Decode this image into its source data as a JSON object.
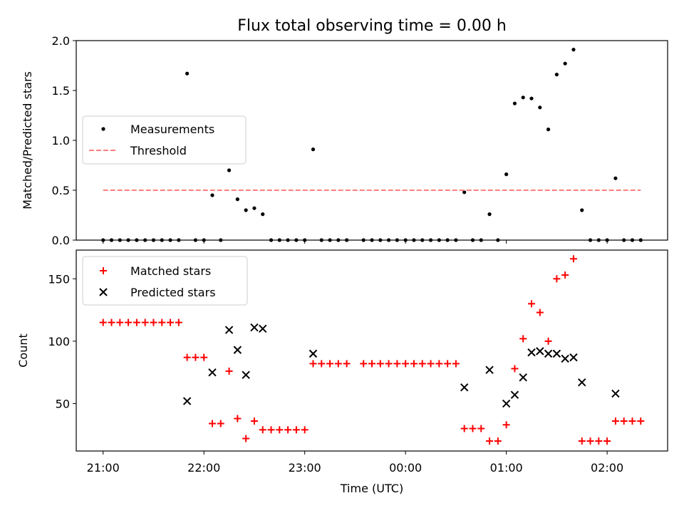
{
  "title": "Flux total observing time = 0.00 h",
  "chart_data": [
    {
      "type": "scatter",
      "name": "ratio-panel",
      "ylabel": "Matched/Predicted stars",
      "ylim": [
        0,
        2.0
      ],
      "yticks": [
        0.0,
        0.5,
        1.0,
        1.5,
        2.0
      ],
      "ytick_labels": [
        "0.0",
        "0.5",
        "1.0",
        "1.5",
        "2.0"
      ],
      "xlim": [
        "20:44",
        "02:36"
      ],
      "legend": {
        "placement": "center-left",
        "entries": [
          "Measurements",
          "Threshold"
        ]
      },
      "series": [
        {
          "name": "Measurements",
          "color": "#000000",
          "points": [
            [
              "21:00",
              0
            ],
            [
              "21:05",
              0
            ],
            [
              "21:10",
              0
            ],
            [
              "21:15",
              0
            ],
            [
              "21:20",
              0
            ],
            [
              "21:25",
              0
            ],
            [
              "21:30",
              0
            ],
            [
              "21:35",
              0
            ],
            [
              "21:40",
              0
            ],
            [
              "21:45",
              0
            ],
            [
              "21:50",
              1.67
            ],
            [
              "21:55",
              0
            ],
            [
              "22:00",
              0
            ],
            [
              "22:05",
              0.45
            ],
            [
              "22:10",
              0
            ],
            [
              "22:15",
              0.7
            ],
            [
              "22:20",
              0.41
            ],
            [
              "22:25",
              0.3
            ],
            [
              "22:30",
              0.32
            ],
            [
              "22:35",
              0.26
            ],
            [
              "22:40",
              0
            ],
            [
              "22:45",
              0
            ],
            [
              "22:50",
              0
            ],
            [
              "22:55",
              0
            ],
            [
              "23:00",
              0
            ],
            [
              "23:05",
              0.91
            ],
            [
              "23:10",
              0
            ],
            [
              "23:15",
              0
            ],
            [
              "23:20",
              0
            ],
            [
              "23:25",
              0
            ],
            [
              "23:35",
              0
            ],
            [
              "23:40",
              0
            ],
            [
              "23:45",
              0
            ],
            [
              "23:50",
              0
            ],
            [
              "23:55",
              0
            ],
            [
              "00:00",
              0
            ],
            [
              "00:05",
              0
            ],
            [
              "00:10",
              0
            ],
            [
              "00:15",
              0
            ],
            [
              "00:20",
              0
            ],
            [
              "00:25",
              0
            ],
            [
              "00:30",
              0
            ],
            [
              "00:35",
              0.48
            ],
            [
              "00:40",
              0
            ],
            [
              "00:45",
              0
            ],
            [
              "00:50",
              0.26
            ],
            [
              "00:55",
              0
            ],
            [
              "01:00",
              0.66
            ],
            [
              "01:05",
              1.37
            ],
            [
              "01:10",
              1.43
            ],
            [
              "01:15",
              1.42
            ],
            [
              "01:20",
              1.33
            ],
            [
              "01:25",
              1.11
            ],
            [
              "01:30",
              1.66
            ],
            [
              "01:35",
              1.77
            ],
            [
              "01:40",
              1.91
            ],
            [
              "01:45",
              0.3
            ],
            [
              "01:50",
              0
            ],
            [
              "01:55",
              0
            ],
            [
              "02:00",
              0
            ],
            [
              "02:05",
              0.62
            ],
            [
              "02:10",
              0
            ],
            [
              "02:15",
              0
            ],
            [
              "02:20",
              0
            ]
          ]
        },
        {
          "name": "Threshold",
          "color": "#ff7f7f",
          "style": "dashed",
          "points": [
            [
              "21:00",
              0.5
            ],
            [
              "02:20",
              0.5
            ]
          ]
        }
      ]
    },
    {
      "type": "scatter",
      "name": "count-panel",
      "ylabel": "Count",
      "xlabel": "Time (UTC)",
      "ylim": [
        12,
        173
      ],
      "yticks": [
        50,
        100,
        150
      ],
      "ytick_labels": [
        "50",
        "100",
        "150"
      ],
      "xlim": [
        "20:44",
        "02:36"
      ],
      "xticks": [
        "21:00",
        "22:00",
        "23:00",
        "00:00",
        "01:00",
        "02:00"
      ],
      "legend": {
        "placement": "top-left",
        "entries": [
          "Matched stars",
          "Predicted stars"
        ]
      },
      "series": [
        {
          "name": "Matched stars",
          "marker": "plus",
          "color": "#ff0000",
          "points": [
            [
              "21:00",
              115
            ],
            [
              "21:05",
              115
            ],
            [
              "21:10",
              115
            ],
            [
              "21:15",
              115
            ],
            [
              "21:20",
              115
            ],
            [
              "21:25",
              115
            ],
            [
              "21:30",
              115
            ],
            [
              "21:35",
              115
            ],
            [
              "21:40",
              115
            ],
            [
              "21:45",
              115
            ],
            [
              "21:50",
              87
            ],
            [
              "21:55",
              87
            ],
            [
              "22:00",
              87
            ],
            [
              "22:05",
              34
            ],
            [
              "22:10",
              34
            ],
            [
              "22:15",
              76
            ],
            [
              "22:20",
              38
            ],
            [
              "22:25",
              22
            ],
            [
              "22:30",
              36
            ],
            [
              "22:35",
              29
            ],
            [
              "22:40",
              29
            ],
            [
              "22:45",
              29
            ],
            [
              "22:50",
              29
            ],
            [
              "22:55",
              29
            ],
            [
              "23:00",
              29
            ],
            [
              "23:05",
              82
            ],
            [
              "23:10",
              82
            ],
            [
              "23:15",
              82
            ],
            [
              "23:20",
              82
            ],
            [
              "23:25",
              82
            ],
            [
              "23:35",
              82
            ],
            [
              "23:40",
              82
            ],
            [
              "23:45",
              82
            ],
            [
              "23:50",
              82
            ],
            [
              "23:55",
              82
            ],
            [
              "00:00",
              82
            ],
            [
              "00:05",
              82
            ],
            [
              "00:10",
              82
            ],
            [
              "00:15",
              82
            ],
            [
              "00:20",
              82
            ],
            [
              "00:25",
              82
            ],
            [
              "00:30",
              82
            ],
            [
              "00:35",
              30
            ],
            [
              "00:40",
              30
            ],
            [
              "00:45",
              30
            ],
            [
              "00:50",
              20
            ],
            [
              "00:55",
              20
            ],
            [
              "01:00",
              33
            ],
            [
              "01:05",
              78
            ],
            [
              "01:10",
              102
            ],
            [
              "01:15",
              130
            ],
            [
              "01:20",
              123
            ],
            [
              "01:25",
              100
            ],
            [
              "01:30",
              150
            ],
            [
              "01:35",
              153
            ],
            [
              "01:40",
              166
            ],
            [
              "01:45",
              20
            ],
            [
              "01:50",
              20
            ],
            [
              "01:55",
              20
            ],
            [
              "02:00",
              20
            ],
            [
              "02:05",
              36
            ],
            [
              "02:10",
              36
            ],
            [
              "02:15",
              36
            ],
            [
              "02:20",
              36
            ]
          ]
        },
        {
          "name": "Predicted stars",
          "marker": "x",
          "color": "#000000",
          "points": [
            [
              "21:50",
              52
            ],
            [
              "22:05",
              75
            ],
            [
              "22:15",
              109
            ],
            [
              "22:20",
              93
            ],
            [
              "22:25",
              73
            ],
            [
              "22:30",
              111
            ],
            [
              "22:35",
              110
            ],
            [
              "23:05",
              90
            ],
            [
              "00:35",
              63
            ],
            [
              "00:50",
              77
            ],
            [
              "01:00",
              50
            ],
            [
              "01:05",
              57
            ],
            [
              "01:10",
              71
            ],
            [
              "01:15",
              91
            ],
            [
              "01:20",
              92
            ],
            [
              "01:25",
              90
            ],
            [
              "01:30",
              90
            ],
            [
              "01:35",
              86
            ],
            [
              "01:40",
              87
            ],
            [
              "01:45",
              67
            ],
            [
              "02:05",
              58
            ]
          ]
        }
      ]
    }
  ]
}
